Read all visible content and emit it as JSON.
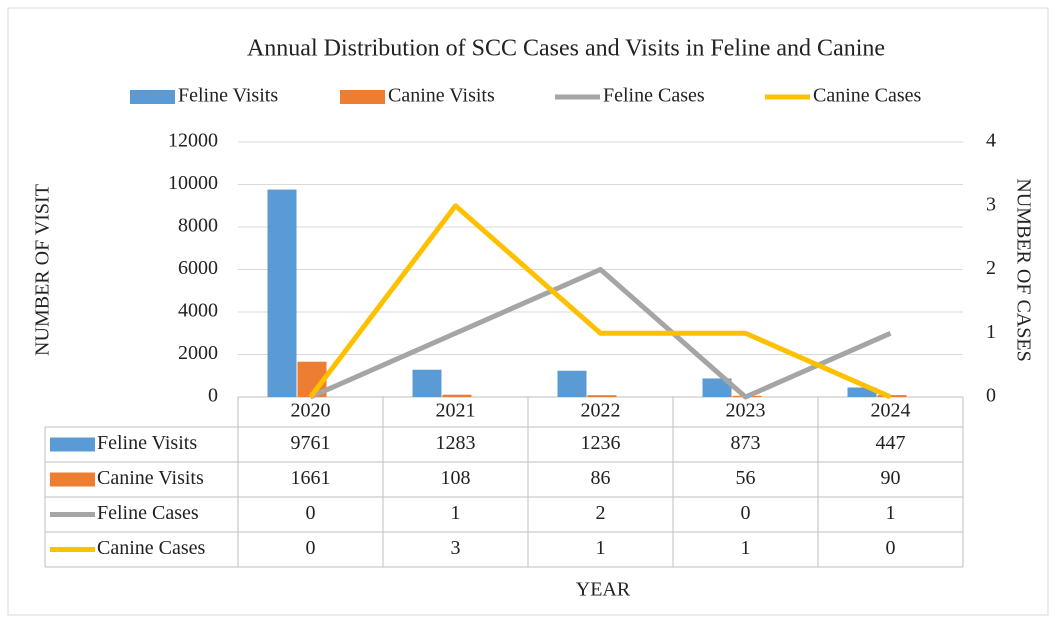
{
  "chart_data": {
    "type": "bar",
    "title": "Annual Distribution of SCC Cases and Visits in Feline and Canine",
    "x_label": "YEAR",
    "y_label": "NUMBER OF VISIT",
    "y2_label": "NUMBER OF CASES",
    "categories": [
      "2020",
      "2021",
      "2022",
      "2023",
      "2024"
    ],
    "series": [
      {
        "name": "Feline Visits",
        "color": "#5b9bd5",
        "type": "bar",
        "values": [
          9761,
          1283,
          1236,
          873,
          447
        ]
      },
      {
        "name": "Canine Visits",
        "color": "#ed7d31",
        "type": "bar",
        "values": [
          1661,
          108,
          86,
          56,
          90
        ]
      },
      {
        "name": "Feline Cases",
        "color": "#a5a5a5",
        "type": "line",
        "axis": "y2",
        "values": [
          0,
          1,
          2,
          0,
          1
        ]
      },
      {
        "name": "Canine Cases",
        "color": "#ffc000",
        "type": "line",
        "axis": "y2",
        "values": [
          0,
          3,
          1,
          1,
          0
        ]
      }
    ],
    "ylim": [
      0,
      12000
    ],
    "yticks": [
      0,
      2000,
      4000,
      6000,
      8000,
      10000,
      12000
    ],
    "y2lim": [
      0,
      4
    ],
    "y2ticks": [
      0,
      1,
      2,
      3,
      4
    ],
    "grid": true,
    "legend": "top",
    "data_table": true
  }
}
